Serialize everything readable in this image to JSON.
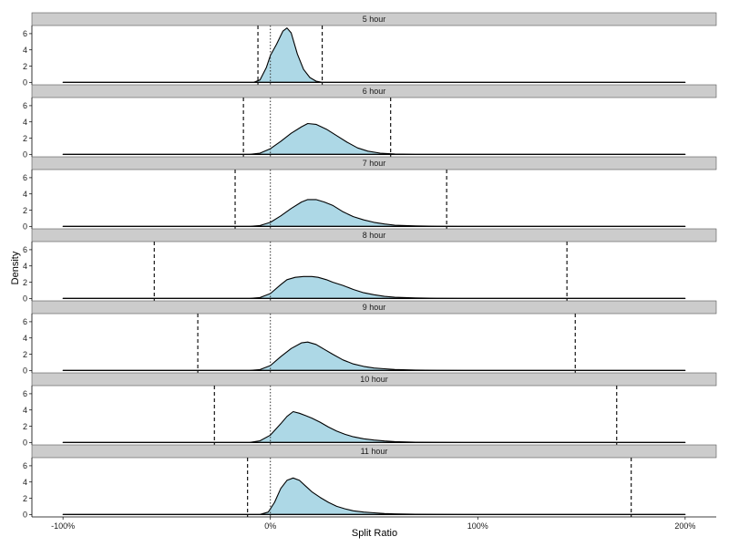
{
  "chart_data": {
    "type": "area",
    "xlabel": "Split Ratio",
    "ylabel": "Density",
    "x_unit": "%",
    "xlim": [
      -115,
      215
    ],
    "ylim": [
      -0.3,
      7
    ],
    "x_ticks": [
      -100,
      0,
      100,
      200
    ],
    "x_tick_labels": [
      "-100%",
      "0%",
      "100%",
      "200%"
    ],
    "y_ticks": [
      0,
      2,
      4,
      6
    ],
    "y_tick_labels": [
      "0",
      "2",
      "4",
      "6"
    ],
    "reference_line_x": 0,
    "fill_color": "#add8e6",
    "strip_color": "#cccccc",
    "grid": false,
    "panels": [
      {
        "label": "5 hour",
        "interval": [
          -6,
          25
        ],
        "x": [
          -100,
          -8,
          -5,
          -2,
          0,
          3,
          6,
          8,
          10,
          13,
          16,
          19,
          22,
          25,
          100,
          200
        ],
        "y": [
          0,
          0,
          0.3,
          1.8,
          3.3,
          4.7,
          6.3,
          6.7,
          6.1,
          3.5,
          1.6,
          0.6,
          0.15,
          0,
          0,
          0
        ]
      },
      {
        "label": "6 hour",
        "interval": [
          -13,
          58
        ],
        "x": [
          -100,
          -10,
          -5,
          0,
          5,
          10,
          15,
          18,
          22,
          27,
          32,
          37,
          42,
          47,
          53,
          60,
          70,
          80,
          100,
          200
        ],
        "y": [
          0,
          0,
          0.15,
          0.7,
          1.6,
          2.6,
          3.4,
          3.8,
          3.7,
          3.1,
          2.3,
          1.5,
          0.8,
          0.4,
          0.15,
          0.05,
          0,
          0,
          0,
          0
        ]
      },
      {
        "label": "7 hour",
        "interval": [
          -17,
          85
        ],
        "x": [
          -100,
          -10,
          -5,
          0,
          5,
          10,
          15,
          18,
          22,
          26,
          30,
          35,
          40,
          45,
          50,
          55,
          60,
          70,
          80,
          100,
          200
        ],
        "y": [
          0,
          0,
          0.1,
          0.5,
          1.3,
          2.2,
          3.0,
          3.3,
          3.3,
          3.0,
          2.6,
          1.8,
          1.2,
          0.8,
          0.5,
          0.3,
          0.15,
          0.06,
          0.02,
          0,
          0
        ]
      },
      {
        "label": "8 hour",
        "interval": [
          -56,
          143
        ],
        "x": [
          -100,
          -10,
          -5,
          0,
          5,
          8,
          12,
          16,
          20,
          23,
          27,
          30,
          35,
          40,
          45,
          50,
          55,
          60,
          70,
          80,
          100,
          200
        ],
        "y": [
          0,
          0,
          0.1,
          0.6,
          1.7,
          2.3,
          2.6,
          2.7,
          2.7,
          2.6,
          2.3,
          2.0,
          1.6,
          1.1,
          0.7,
          0.45,
          0.25,
          0.15,
          0.06,
          0.02,
          0,
          0
        ]
      },
      {
        "label": "9 hour",
        "interval": [
          -35,
          147
        ],
        "x": [
          -100,
          -10,
          -5,
          0,
          5,
          10,
          15,
          18,
          22,
          26,
          30,
          35,
          40,
          45,
          50,
          55,
          60,
          70,
          80,
          100,
          200
        ],
        "y": [
          0,
          0,
          0.1,
          0.6,
          1.7,
          2.7,
          3.4,
          3.5,
          3.2,
          2.6,
          2.0,
          1.3,
          0.8,
          0.5,
          0.3,
          0.2,
          0.12,
          0.05,
          0.02,
          0,
          0
        ]
      },
      {
        "label": "10 hour",
        "interval": [
          -27,
          167
        ],
        "x": [
          -100,
          -10,
          -5,
          0,
          5,
          8,
          11,
          14,
          17,
          20,
          24,
          28,
          32,
          36,
          40,
          45,
          50,
          55,
          60,
          70,
          80,
          100,
          200
        ],
        "y": [
          0,
          0,
          0.2,
          0.9,
          2.3,
          3.2,
          3.8,
          3.6,
          3.3,
          3.0,
          2.5,
          1.9,
          1.4,
          1.0,
          0.7,
          0.45,
          0.3,
          0.18,
          0.1,
          0.04,
          0.02,
          0,
          0
        ]
      },
      {
        "label": "11 hour",
        "interval": [
          -11,
          174
        ],
        "x": [
          -100,
          -5,
          -1,
          2,
          5,
          8,
          11,
          14,
          17,
          20,
          24,
          28,
          32,
          36,
          40,
          45,
          50,
          55,
          60,
          70,
          80,
          100,
          200
        ],
        "y": [
          0,
          0,
          0.3,
          1.5,
          3.2,
          4.2,
          4.5,
          4.2,
          3.5,
          2.8,
          2.1,
          1.5,
          1.0,
          0.7,
          0.45,
          0.3,
          0.2,
          0.12,
          0.07,
          0.03,
          0.01,
          0,
          0
        ]
      }
    ]
  }
}
